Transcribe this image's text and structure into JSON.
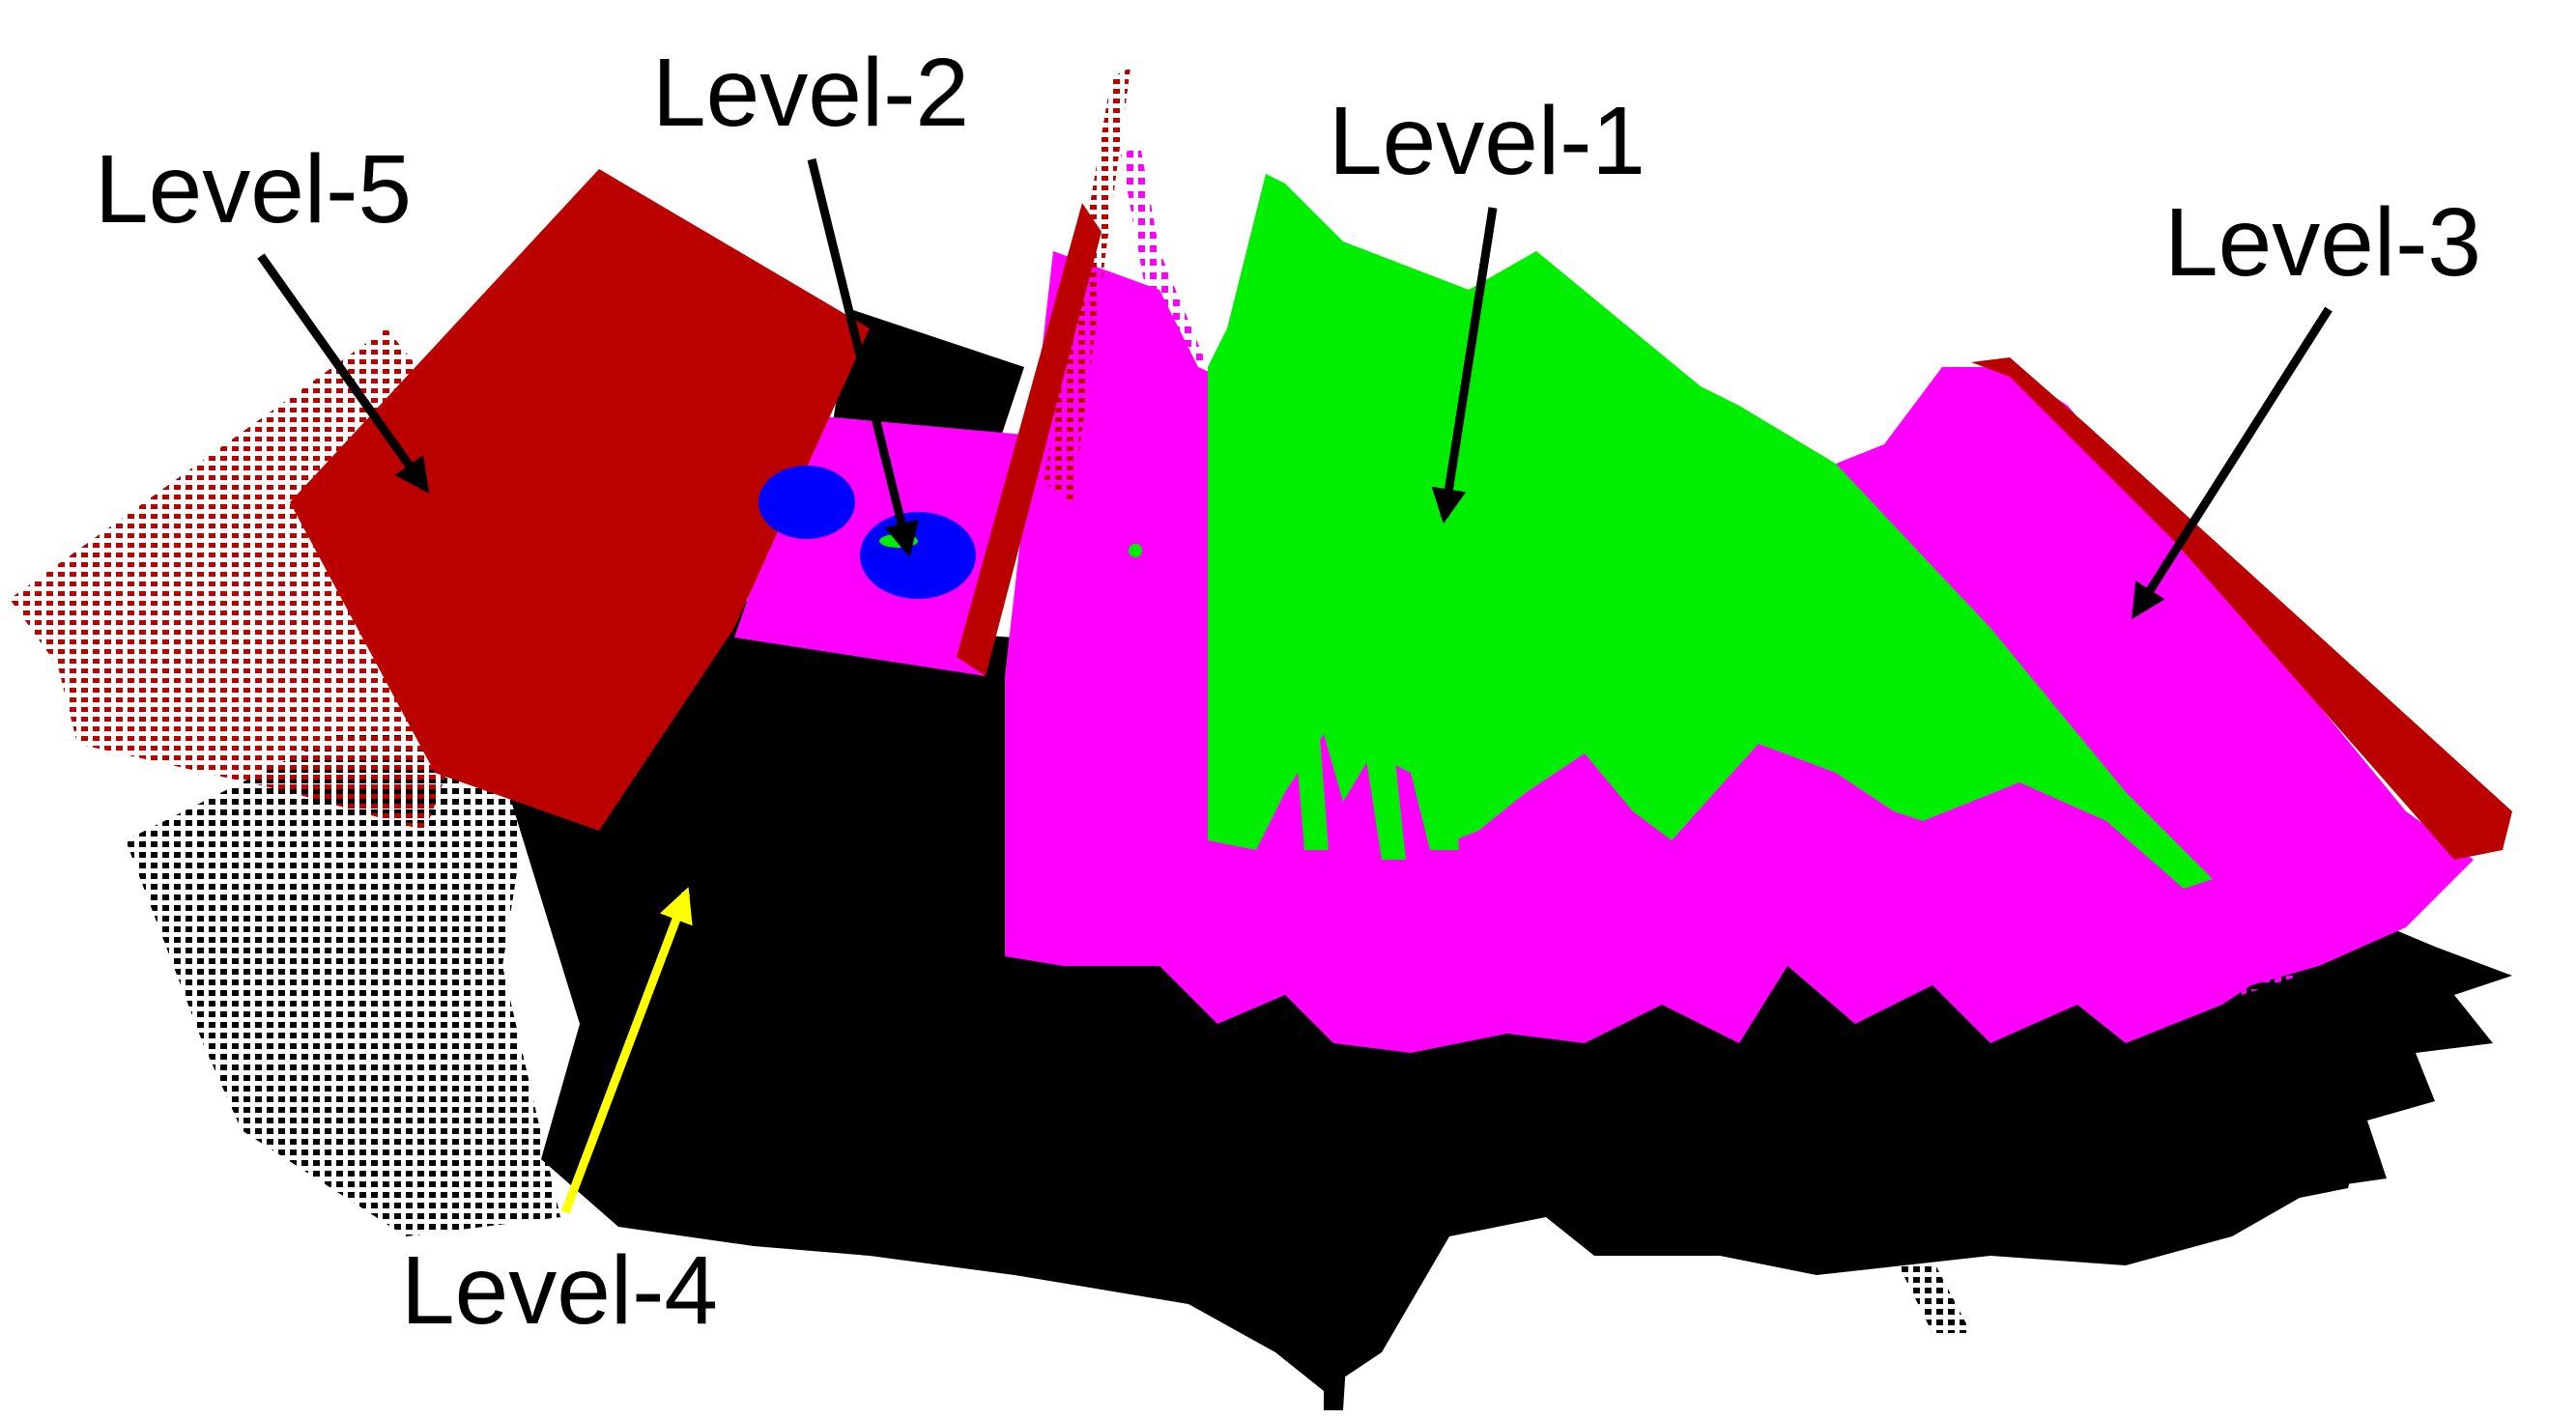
{
  "labels": {
    "level1": "Level-1",
    "level2": "Level-2",
    "level3": "Level-3",
    "level4": "Level-4",
    "level5": "Level-5"
  },
  "colors": {
    "level1": "#00ee00",
    "level2": "#0000ff",
    "level3": "#ff00ff",
    "level4": "#000000",
    "level5": "#bb0000",
    "arrow_default": "#000000",
    "arrow_level4": "#ffff00"
  }
}
